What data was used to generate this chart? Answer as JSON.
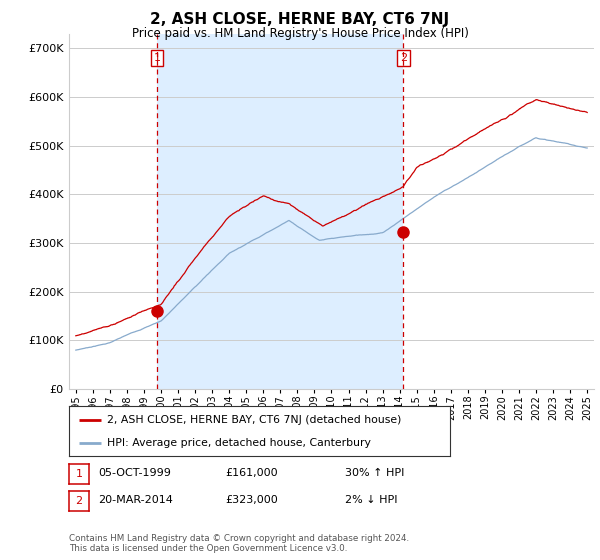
{
  "title": "2, ASH CLOSE, HERNE BAY, CT6 7NJ",
  "subtitle": "Price paid vs. HM Land Registry's House Price Index (HPI)",
  "ytick_values": [
    0,
    100000,
    200000,
    300000,
    400000,
    500000,
    600000,
    700000
  ],
  "ylim": [
    0,
    730000
  ],
  "sale1": {
    "date_label": "05-OCT-1999",
    "price": 161000,
    "marker_y": 161000,
    "vline_x": 1999.76
  },
  "sale2": {
    "date_label": "20-MAR-2014",
    "price": 323000,
    "marker_y": 323000,
    "vline_x": 2014.21
  },
  "legend_line1": "2, ASH CLOSE, HERNE BAY, CT6 7NJ (detached house)",
  "legend_line2": "HPI: Average price, detached house, Canterbury",
  "table_row1": [
    "1",
    "05-OCT-1999",
    "£161,000",
    "30% ↑ HPI"
  ],
  "table_row2": [
    "2",
    "20-MAR-2014",
    "£323,000",
    "2% ↓ HPI"
  ],
  "footer": "Contains HM Land Registry data © Crown copyright and database right 2024.\nThis data is licensed under the Open Government Licence v3.0.",
  "line_color_red": "#cc0000",
  "line_color_blue": "#88aacc",
  "shade_color": "#ddeeff",
  "vline_color": "#cc0000",
  "bg_color": "#ffffff",
  "grid_color": "#cccccc",
  "xlim_start": 1994.6,
  "xlim_end": 2025.4,
  "xtick_years": [
    1995,
    1996,
    1997,
    1998,
    1999,
    2000,
    2001,
    2002,
    2003,
    2004,
    2005,
    2006,
    2007,
    2008,
    2009,
    2010,
    2011,
    2012,
    2013,
    2014,
    2015,
    2016,
    2017,
    2018,
    2019,
    2020,
    2021,
    2022,
    2023,
    2024,
    2025
  ]
}
